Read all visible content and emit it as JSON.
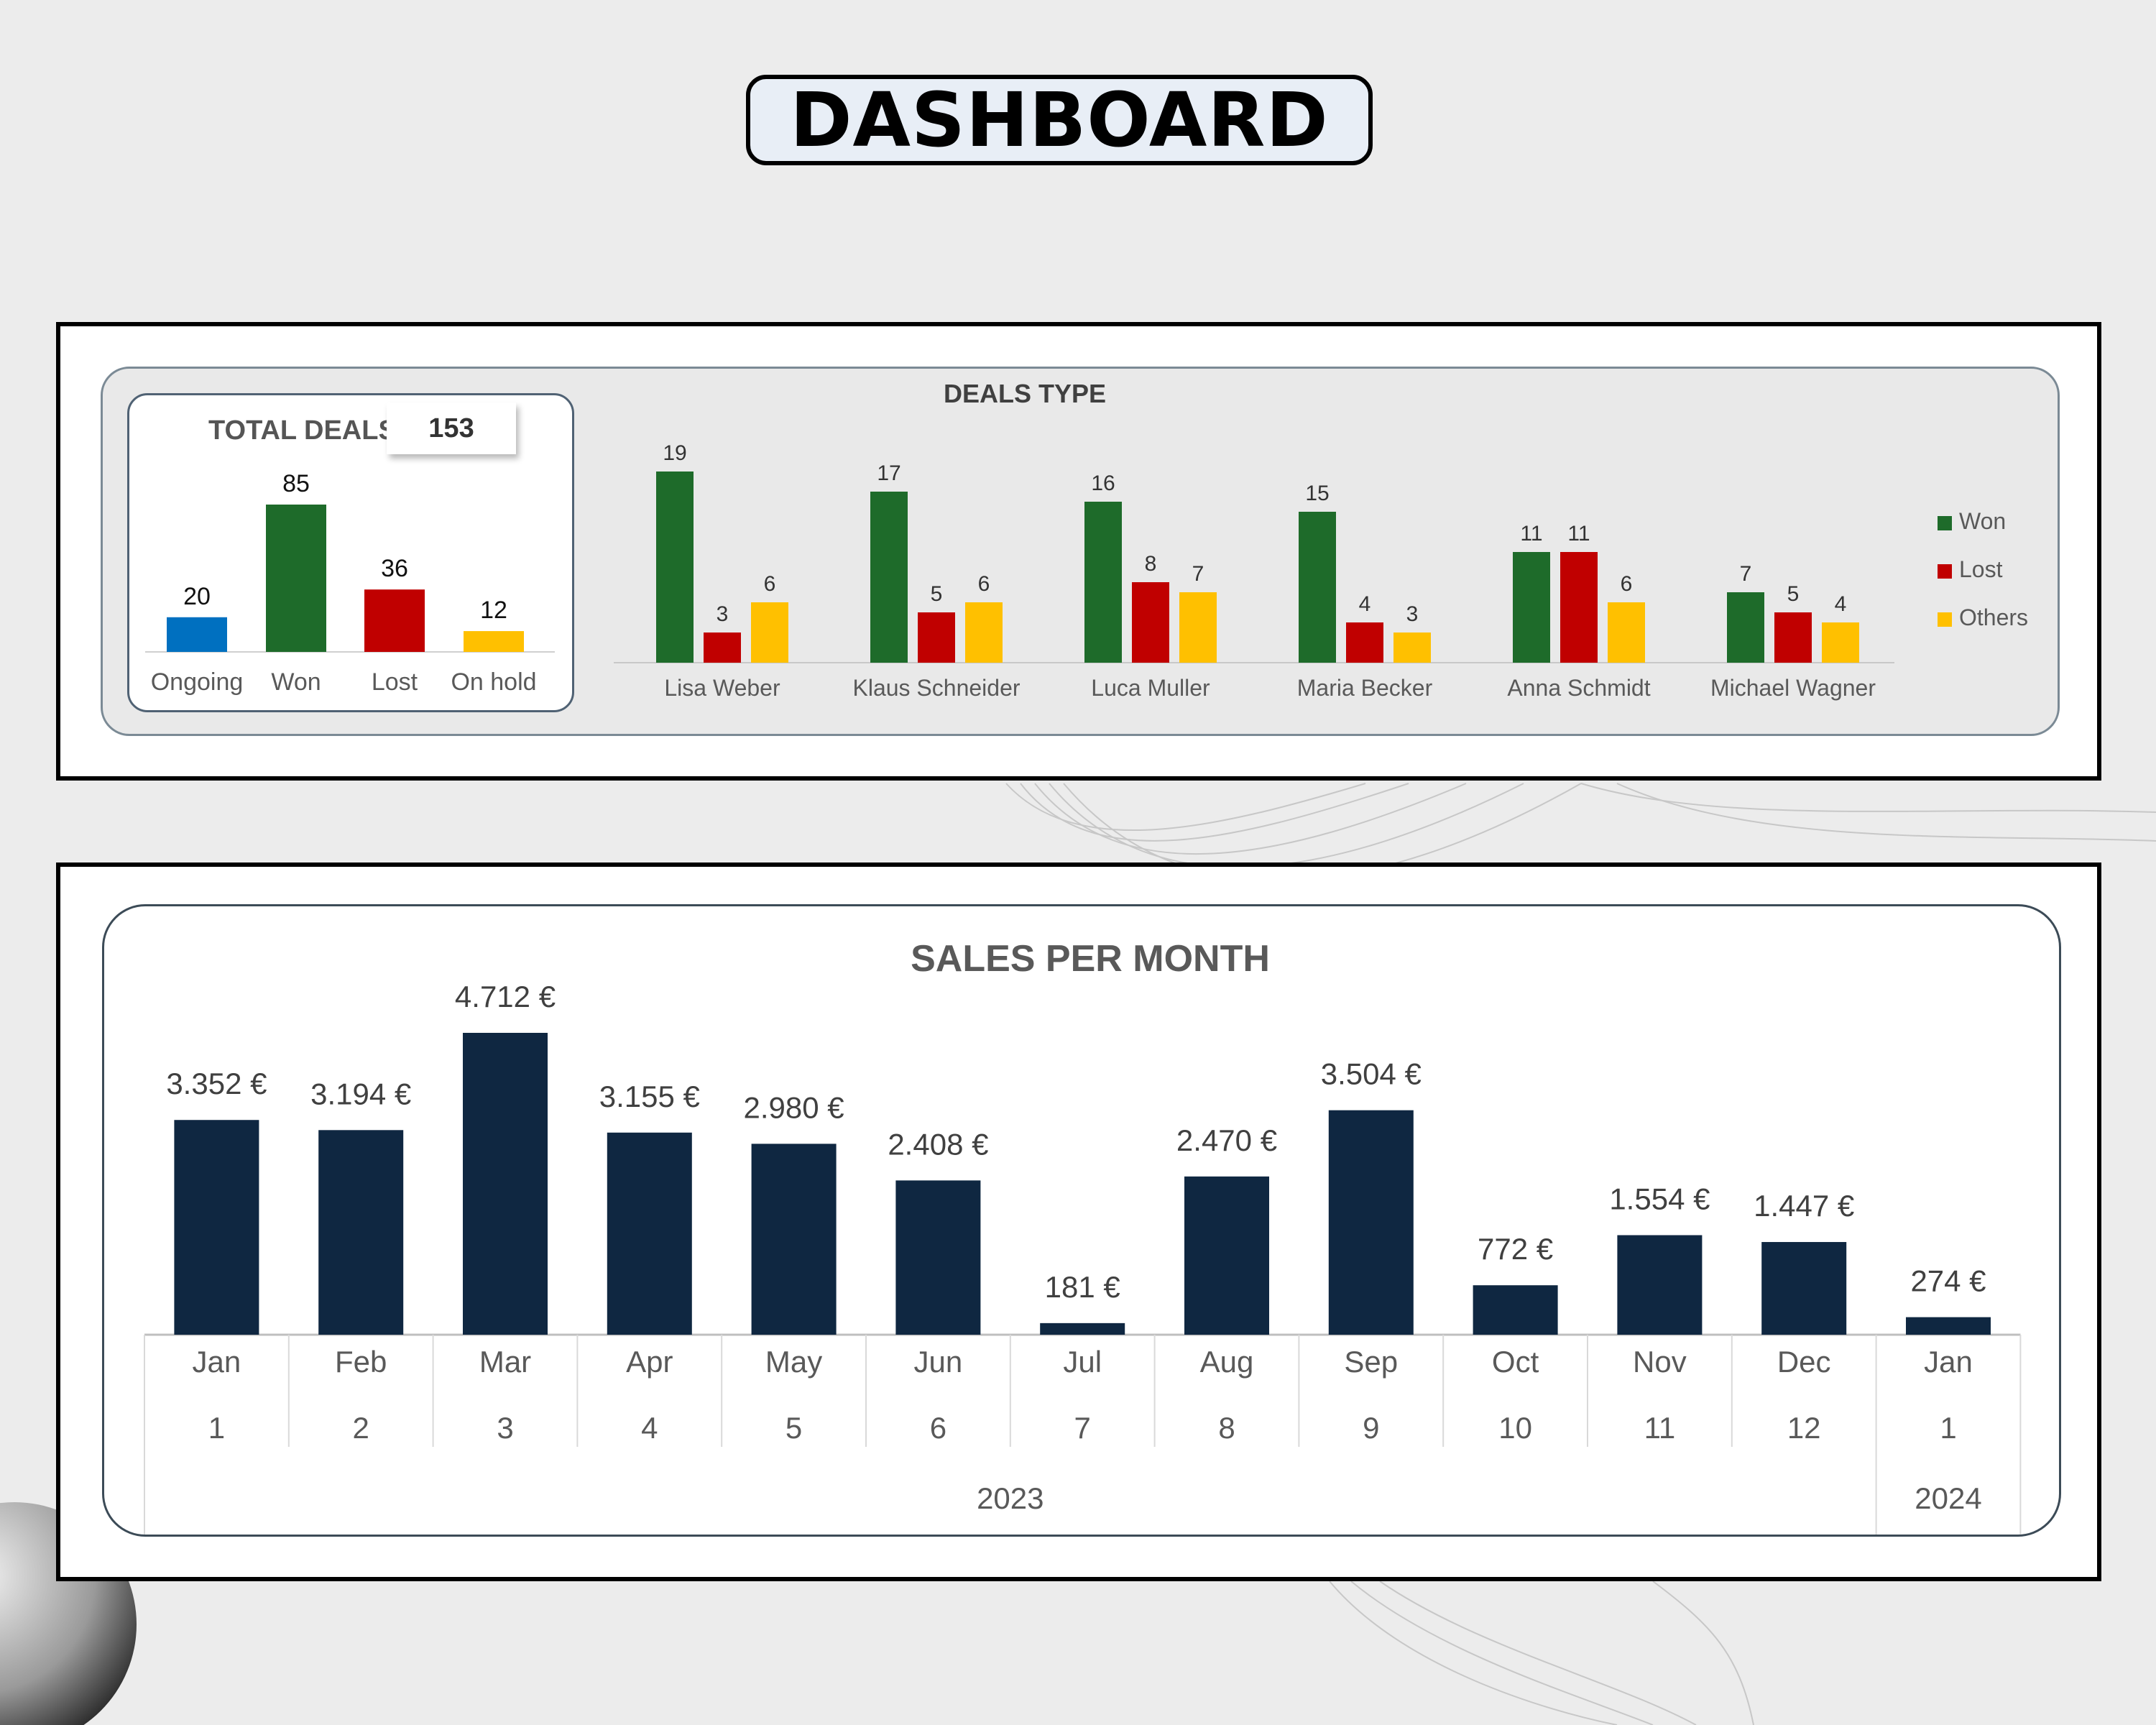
{
  "header": {
    "title": "DASHBOARD"
  },
  "colors": {
    "won": "#1e6b2a",
    "lost": "#c00000",
    "others": "#ffc000",
    "ongoing": "#0070c0",
    "sales_bar": "#0f2741"
  },
  "chart_data": [
    {
      "type": "bar",
      "title": "TOTAL DEALS",
      "total": "153",
      "categories": [
        "Ongoing",
        "Won",
        "Lost",
        "On hold"
      ],
      "values": [
        20,
        85,
        36,
        12
      ],
      "colors": [
        "#0070c0",
        "#1e6b2a",
        "#c00000",
        "#ffc000"
      ]
    },
    {
      "type": "bar",
      "title": "DEALS TYPE",
      "categories": [
        "Lisa Weber",
        "Klaus Schneider",
        "Luca Muller",
        "Maria Becker",
        "Anna Schmidt",
        "Michael Wagner"
      ],
      "series": [
        {
          "name": "Won",
          "values": [
            19,
            17,
            16,
            15,
            11,
            7
          ],
          "color": "#1e6b2a"
        },
        {
          "name": "Lost",
          "values": [
            3,
            5,
            8,
            4,
            11,
            5
          ],
          "color": "#c00000"
        },
        {
          "name": "Others",
          "values": [
            6,
            6,
            7,
            3,
            6,
            4
          ],
          "color": "#ffc000"
        }
      ],
      "legend": "right"
    },
    {
      "type": "bar",
      "title": "SALES PER MONTH",
      "categories": [
        {
          "month": "Jan",
          "num": "1",
          "year": "2023"
        },
        {
          "month": "Feb",
          "num": "2",
          "year": "2023"
        },
        {
          "month": "Mar",
          "num": "3",
          "year": "2023"
        },
        {
          "month": "Apr",
          "num": "4",
          "year": "2023"
        },
        {
          "month": "May",
          "num": "5",
          "year": "2023"
        },
        {
          "month": "Jun",
          "num": "6",
          "year": "2023"
        },
        {
          "month": "Jul",
          "num": "7",
          "year": "2023"
        },
        {
          "month": "Aug",
          "num": "8",
          "year": "2023"
        },
        {
          "month": "Sep",
          "num": "9",
          "year": "2023"
        },
        {
          "month": "Oct",
          "num": "10",
          "year": "2023"
        },
        {
          "month": "Nov",
          "num": "11",
          "year": "2023"
        },
        {
          "month": "Dec",
          "num": "12",
          "year": "2023"
        },
        {
          "month": "Jan",
          "num": "1",
          "year": "2024"
        }
      ],
      "values": [
        3352,
        3194,
        4712,
        3155,
        2980,
        2408,
        181,
        2470,
        3504,
        772,
        1554,
        1447,
        274
      ],
      "labels": [
        "3.352 €",
        "3.194 €",
        "4.712 €",
        "3.155 €",
        "2.980 €",
        "2.408 €",
        "181 €",
        "2.470 €",
        "3.504 €",
        "772 €",
        "1.554 €",
        "1.447 €",
        "274 €"
      ],
      "years": [
        "2023",
        "2024"
      ]
    }
  ]
}
